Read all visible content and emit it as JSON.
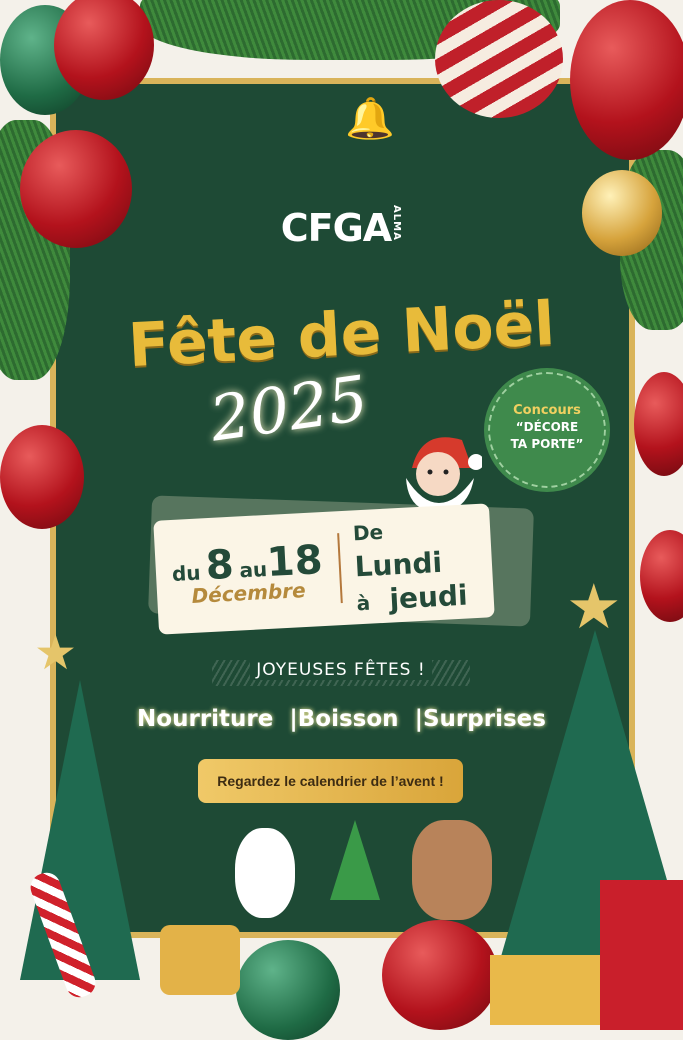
{
  "logo": {
    "text": "CFGA",
    "sub": "ALMA"
  },
  "title": "Fête de Noël",
  "year": "2025",
  "badge": {
    "line1": "Concours",
    "line2": "“DÉCORE",
    "line3": "TA PORTE”"
  },
  "dates": {
    "du": "du",
    "start": "8",
    "au": "au",
    "end": "18",
    "month": "Décembre",
    "days_line1_small": "De",
    "days_line1": "Lundi",
    "days_line2_small": "à",
    "days_line2": "jeudi"
  },
  "greeting": "JOYEUSES FÊTES !",
  "items": [
    "Nourriture",
    "Boisson",
    "Surprises"
  ],
  "separator": "|",
  "cta": "Regardez le calendrier de l’avent !",
  "colors": {
    "board": "#1e4a35",
    "gold": "#e8bb3a",
    "frame": "#d9b45a",
    "cream": "#fbf5e6"
  }
}
